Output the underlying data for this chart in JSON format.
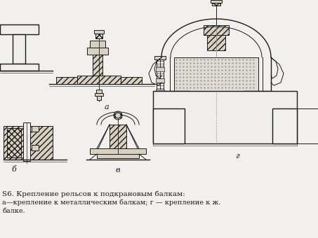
{
  "bg_color": "#f2f0ec",
  "fig_width": 4.53,
  "fig_height": 3.4,
  "dpi": 100,
  "caption_line1": "Ѕ6. Крепление рельсов к подкрановым балкам:",
  "caption_line2": "а—крепление к металлическим балкам; г — крепление к ж.",
  "caption_line3": "балке.",
  "label_a": "a",
  "label_b": "б",
  "label_v": "в",
  "label_g": "г",
  "lc": "#1a1a1a",
  "lw": 0.7,
  "lw2": 1.0,
  "fc_hatch": "#d8d0c0",
  "fc_rail": "#e8e4e0",
  "fc_light": "#f0eeea",
  "fc_dot": "#e0dcd4"
}
